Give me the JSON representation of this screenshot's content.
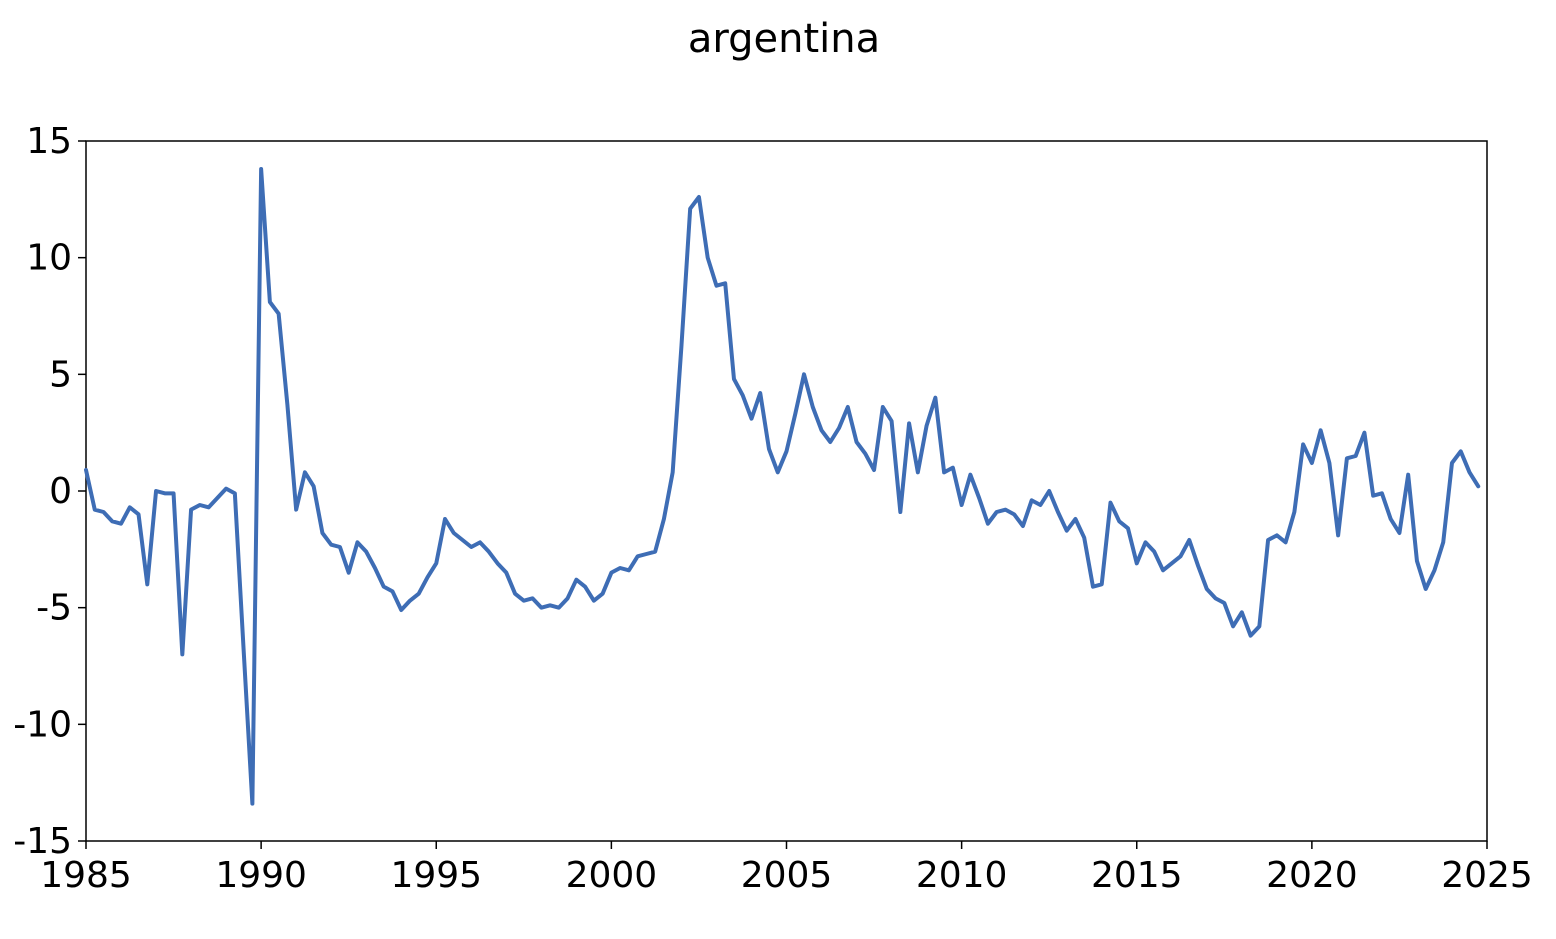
{
  "chart_data": {
    "type": "line",
    "title": "argentina",
    "xlabel": "",
    "ylabel": "",
    "xlim": [
      1985,
      2025
    ],
    "ylim": [
      -15,
      15
    ],
    "x_ticks": [
      1985,
      1990,
      1995,
      2000,
      2005,
      2010,
      2015,
      2020,
      2025
    ],
    "y_ticks": [
      15,
      10,
      5,
      0,
      -5,
      -10,
      -15
    ],
    "x_tick_labels": [
      "1985",
      "1990",
      "1995",
      "2000",
      "2005",
      "2010",
      "2015",
      "2020",
      "2025"
    ],
    "y_tick_labels": [
      "15",
      "10",
      "5",
      "0",
      "-5",
      "-10",
      "-15"
    ],
    "grid": false,
    "legend": "none",
    "line_color": "#3e6db5",
    "series": [
      {
        "frequency": "quarterly",
        "x": [
          1985.0,
          1985.25,
          1985.5,
          1985.75,
          1986.0,
          1986.25,
          1986.5,
          1986.75,
          1987.0,
          1987.25,
          1987.5,
          1987.75,
          1988.0,
          1988.25,
          1988.5,
          1988.75,
          1989.0,
          1989.25,
          1989.5,
          1989.75,
          1990.0,
          1990.25,
          1990.5,
          1990.75,
          1991.0,
          1991.25,
          1991.5,
          1991.75,
          1992.0,
          1992.25,
          1992.5,
          1992.75,
          1993.0,
          1993.25,
          1993.5,
          1993.75,
          1994.0,
          1994.25,
          1994.5,
          1994.75,
          1995.0,
          1995.25,
          1995.5,
          1995.75,
          1996.0,
          1996.25,
          1996.5,
          1996.75,
          1997.0,
          1997.25,
          1997.5,
          1997.75,
          1998.0,
          1998.25,
          1998.5,
          1998.75,
          1999.0,
          1999.25,
          1999.5,
          1999.75,
          2000.0,
          2000.25,
          2000.5,
          2000.75,
          2001.0,
          2001.25,
          2001.5,
          2001.75,
          2002.0,
          2002.25,
          2002.5,
          2002.75,
          2003.0,
          2003.25,
          2003.5,
          2003.75,
          2004.0,
          2004.25,
          2004.5,
          2004.75,
          2005.0,
          2005.25,
          2005.5,
          2005.75,
          2006.0,
          2006.25,
          2006.5,
          2006.75,
          2007.0,
          2007.25,
          2007.5,
          2007.75,
          2008.0,
          2008.25,
          2008.5,
          2008.75,
          2009.0,
          2009.25,
          2009.5,
          2009.75,
          2010.0,
          2010.25,
          2010.5,
          2010.75,
          2011.0,
          2011.25,
          2011.5,
          2011.75,
          2012.0,
          2012.25,
          2012.5,
          2012.75,
          2013.0,
          2013.25,
          2013.5,
          2013.75,
          2014.0,
          2014.25,
          2014.5,
          2014.75,
          2015.0,
          2015.25,
          2015.5,
          2015.75,
          2016.0,
          2016.25,
          2016.5,
          2016.75,
          2017.0,
          2017.25,
          2017.5,
          2017.75,
          2018.0,
          2018.25,
          2018.5,
          2018.75,
          2019.0,
          2019.25,
          2019.5,
          2019.75,
          2020.0,
          2020.25,
          2020.5,
          2020.75,
          2021.0,
          2021.25,
          2021.5,
          2021.75,
          2022.0,
          2022.25,
          2022.5,
          2022.75,
          2023.0,
          2023.25,
          2023.5,
          2023.75,
          2024.0,
          2024.25,
          2024.5,
          2024.75
        ],
        "values": [
          0.9,
          -0.8,
          -0.9,
          -1.3,
          -1.4,
          -0.7,
          -1.0,
          -4.0,
          0.0,
          -0.1,
          -0.1,
          -7.0,
          -0.8,
          -0.6,
          -0.7,
          -0.3,
          0.1,
          -0.1,
          -6.8,
          -13.4,
          13.8,
          8.1,
          7.6,
          3.7,
          -0.8,
          0.8,
          0.2,
          -1.8,
          -2.3,
          -2.4,
          -3.5,
          -2.2,
          -2.6,
          -3.3,
          -4.1,
          -4.3,
          -5.1,
          -4.7,
          -4.4,
          -3.7,
          -3.1,
          -1.2,
          -1.8,
          -2.1,
          -2.4,
          -2.2,
          -2.6,
          -3.1,
          -3.5,
          -4.4,
          -4.7,
          -4.6,
          -5.0,
          -4.9,
          -5.0,
          -4.6,
          -3.8,
          -4.1,
          -4.7,
          -4.4,
          -3.5,
          -3.3,
          -3.4,
          -2.8,
          -2.7,
          -2.6,
          -1.2,
          0.8,
          6.2,
          12.1,
          12.6,
          10.0,
          8.8,
          8.9,
          4.8,
          4.1,
          3.1,
          4.2,
          1.8,
          0.8,
          1.7,
          3.3,
          5.0,
          3.6,
          2.6,
          2.1,
          2.7,
          3.6,
          2.1,
          1.6,
          0.9,
          3.6,
          3.0,
          -0.9,
          2.9,
          0.8,
          2.8,
          4.0,
          0.8,
          1.0,
          -0.6,
          0.7,
          -0.3,
          -1.4,
          -0.9,
          -0.8,
          -1.0,
          -1.5,
          -0.4,
          -0.6,
          0.0,
          -0.9,
          -1.7,
          -1.2,
          -2.0,
          -4.1,
          -4.0,
          -0.5,
          -1.3,
          -1.6,
          -3.1,
          -2.2,
          -2.6,
          -3.4,
          -3.1,
          -2.8,
          -2.1,
          -3.2,
          -4.2,
          -4.6,
          -4.8,
          -5.8,
          -5.2,
          -6.2,
          -5.8,
          -2.1,
          -1.9,
          -2.2,
          -0.9,
          2.0,
          1.2,
          2.6,
          1.2,
          -1.9,
          1.4,
          1.5,
          2.5,
          -0.2,
          -0.1,
          -1.2,
          -1.8,
          0.7,
          -3.0,
          -4.2,
          -3.4,
          -2.2,
          1.2,
          1.7,
          0.8,
          0.2
        ]
      }
    ]
  }
}
